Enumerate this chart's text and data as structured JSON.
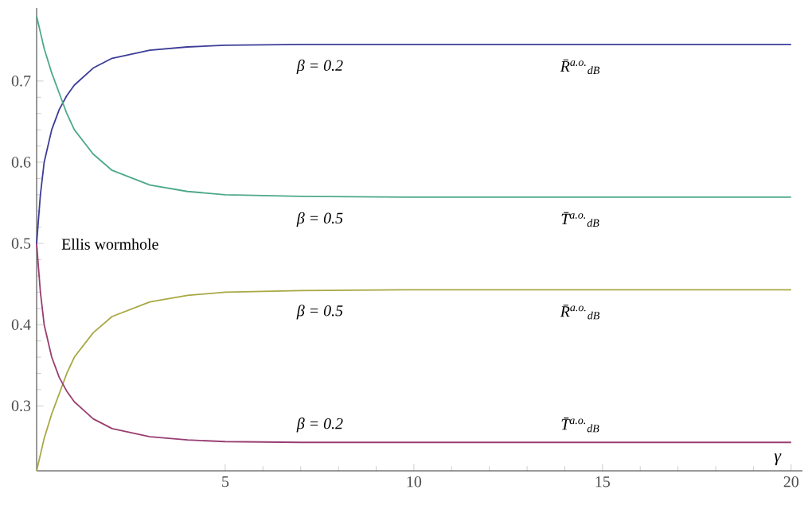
{
  "chart_data": {
    "type": "line",
    "xlabel": "γ",
    "x": [
      0,
      0.1,
      0.2,
      0.4,
      0.6,
      0.8,
      1,
      1.5,
      2,
      3,
      4,
      5,
      7,
      10,
      15,
      20
    ],
    "series": [
      {
        "color": "#3c3c99",
        "values": [
          0.5,
          0.56,
          0.6,
          0.64,
          0.665,
          0.682,
          0.695,
          0.716,
          0.728,
          0.738,
          0.742,
          0.744,
          0.745,
          0.745,
          0.745,
          0.745
        ]
      },
      {
        "color": "#4ca88c",
        "values": [
          0.78,
          0.76,
          0.74,
          0.71,
          0.685,
          0.66,
          0.64,
          0.61,
          0.59,
          0.572,
          0.564,
          0.56,
          0.558,
          0.557,
          0.557,
          0.557
        ]
      },
      {
        "color": "#a8a844",
        "values": [
          0.22,
          0.24,
          0.26,
          0.29,
          0.315,
          0.34,
          0.36,
          0.39,
          0.41,
          0.428,
          0.436,
          0.44,
          0.442,
          0.443,
          0.443,
          0.443
        ]
      },
      {
        "color": "#993d71",
        "values": [
          0.5,
          0.44,
          0.4,
          0.36,
          0.335,
          0.318,
          0.305,
          0.284,
          0.272,
          0.262,
          0.258,
          0.256,
          0.255,
          0.255,
          0.255,
          0.255
        ]
      }
    ],
    "xlim": [
      0,
      20.3
    ],
    "ylim": [
      0.22,
      0.79
    ],
    "xticks": [
      5,
      10,
      15,
      20
    ],
    "yticks": [
      0.3,
      0.4,
      0.5,
      0.6,
      0.7
    ],
    "grid": false,
    "marker": "none",
    "line_style": "solid",
    "annotations": [
      "β = 0.2",
      "R̄$^{a.o.}$$_{dB}$",
      "β = 0.5",
      "T̄$^{a.o.}$$_{dB}$",
      "β = 0.5",
      "R̄$^{a.o.}$$_{dB}$",
      "β = 0.2",
      "T̄$^{a.o.}$$_{dB}$",
      "Ellis  wormhole"
    ]
  }
}
